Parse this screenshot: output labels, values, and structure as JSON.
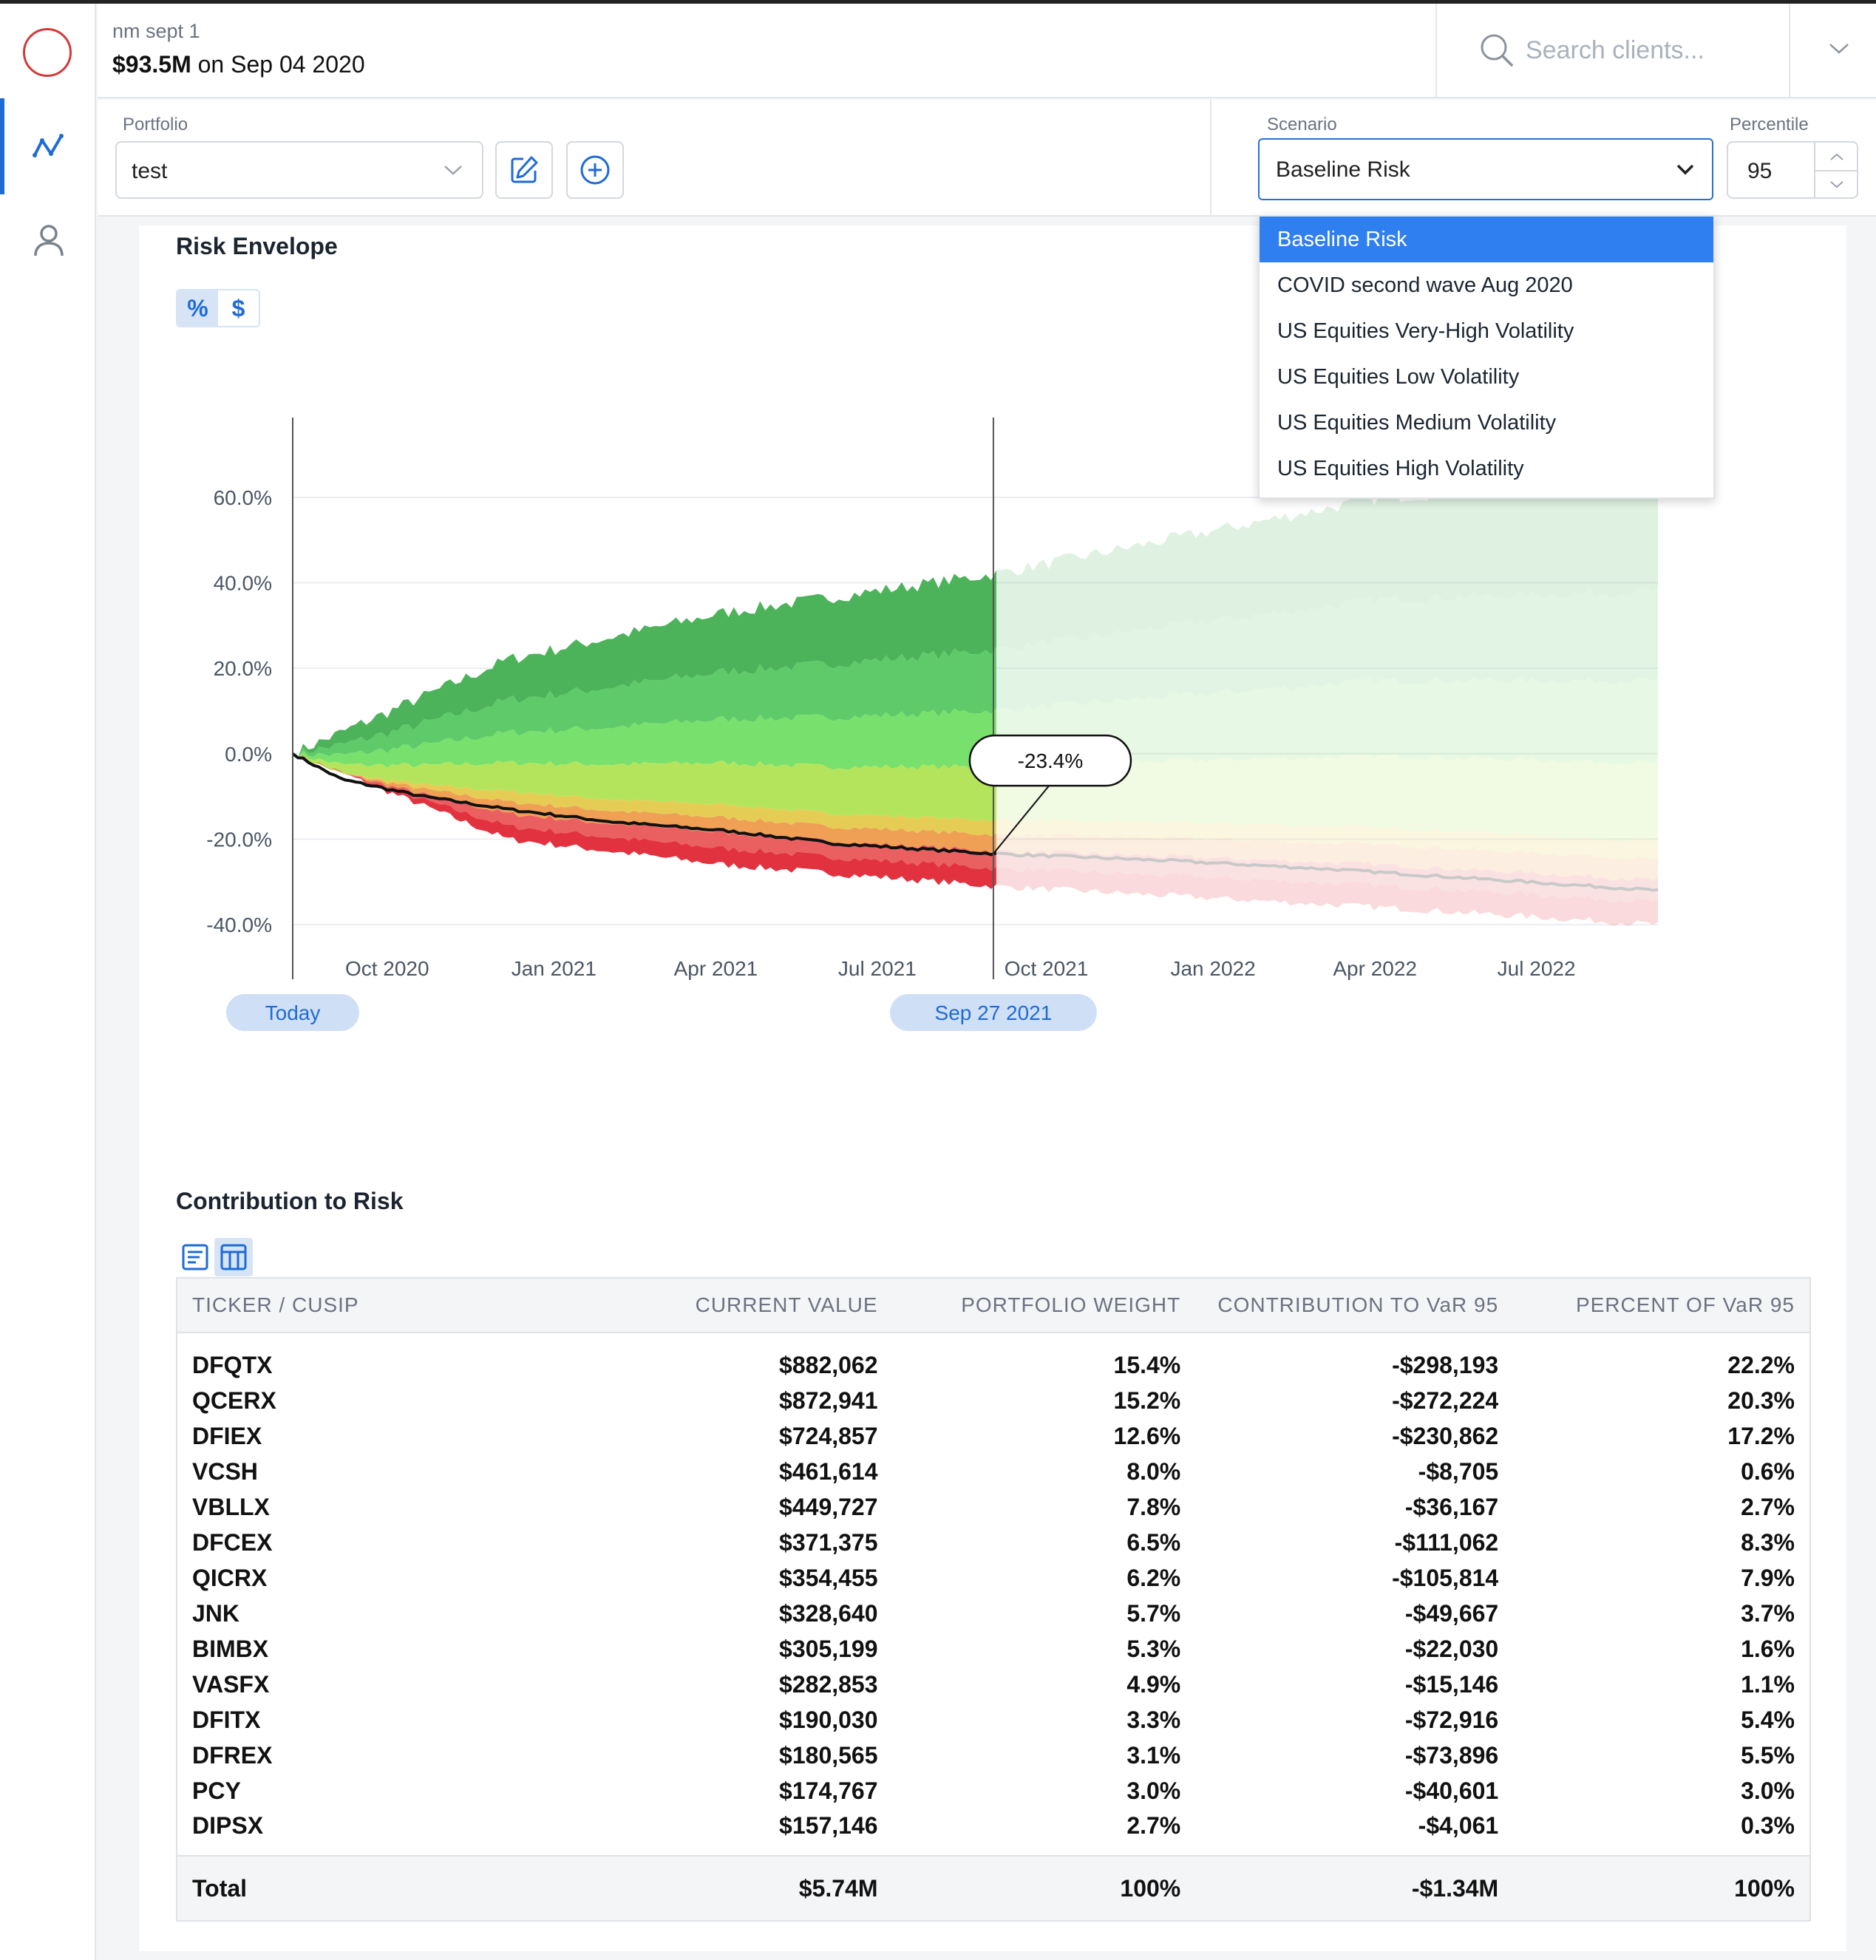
{
  "header": {
    "client_name": "nm sept 1",
    "aum": "$93.5M",
    "aum_suffix": " on Sep 04 2020",
    "search_placeholder": "Search clients..."
  },
  "toolbar": {
    "portfolio_label": "Portfolio",
    "portfolio_value": "test",
    "scenario_label": "Scenario",
    "scenario_value": "Baseline Risk",
    "percentile_label": "Percentile",
    "percentile_value": "95"
  },
  "scenario_menu": {
    "options": [
      "Baseline Risk",
      "COVID second wave Aug 2020",
      "US Equities Very-High Volatility",
      "US Equities Low Volatility",
      "US Equities Medium Volatility",
      "US Equities High Volatility"
    ],
    "selected_index": 0
  },
  "risk_envelope": {
    "title": "Risk Envelope",
    "toggle": {
      "percent": "%",
      "dollar": "$",
      "active": "percent"
    },
    "today_label": "Today",
    "marker_label": "Sep 27 2021",
    "callout": "-23.4%"
  },
  "chart_data": {
    "type": "area",
    "title": "",
    "xlabel": "",
    "ylabel": "",
    "x_ticks": [
      "Oct 2020",
      "Jan 2021",
      "Apr 2021",
      "Jul 2021",
      "Oct 2021",
      "Jan 2022",
      "Apr 2022",
      "Jul 2022"
    ],
    "y_ticks": [
      "60.0%",
      "40.0%",
      "20.0%",
      "0.0%",
      "-20.0%",
      "-40.0%"
    ],
    "y_range": [
      -45,
      70
    ],
    "x_range": [
      "2020-09-04",
      "2022-09-30"
    ],
    "marker_date": "2021-09-27",
    "marker_value": -23.4,
    "grid": true,
    "envelope_bands": [
      {
        "name": "upper-2",
        "color": "#4db35a"
      },
      {
        "name": "upper-1",
        "color": "#5fca6a"
      },
      {
        "name": "upper-0",
        "color": "#78e06c"
      },
      {
        "name": "mid-upper",
        "color": "#b4e45c"
      },
      {
        "name": "mid",
        "color": "#e5cd55"
      },
      {
        "name": "mid-lower",
        "color": "#efa055"
      },
      {
        "name": "lower-1",
        "color": "#ea6060"
      },
      {
        "name": "lower-2",
        "color": "#e2323f"
      }
    ],
    "path_points": [
      {
        "x": "2020-09-04",
        "y": 0
      },
      {
        "x": "2020-10-01",
        "y": -6
      },
      {
        "x": "2020-11-15",
        "y": -10
      },
      {
        "x": "2021-01-01",
        "y": -13
      },
      {
        "x": "2021-03-01",
        "y": -16
      },
      {
        "x": "2021-05-01",
        "y": -18
      },
      {
        "x": "2021-07-01",
        "y": -21
      },
      {
        "x": "2021-09-27",
        "y": -23.4
      },
      {
        "x": "2022-01-01",
        "y": -25
      },
      {
        "x": "2022-04-01",
        "y": -27
      },
      {
        "x": "2022-09-30",
        "y": -32
      }
    ],
    "upper_envelope": [
      {
        "x": "2020-09-04",
        "y": 0
      },
      {
        "x": "2021-01-01",
        "y": 22
      },
      {
        "x": "2021-05-01",
        "y": 33
      },
      {
        "x": "2021-09-27",
        "y": 42
      },
      {
        "x": "2022-01-01",
        "y": 50
      },
      {
        "x": "2022-05-01",
        "y": 60
      },
      {
        "x": "2022-09-30",
        "y": 64
      }
    ],
    "lower_envelope": [
      {
        "x": "2020-09-04",
        "y": 0
      },
      {
        "x": "2021-01-01",
        "y": -20
      },
      {
        "x": "2021-05-01",
        "y": -26
      },
      {
        "x": "2021-09-27",
        "y": -31
      },
      {
        "x": "2022-05-01",
        "y": -36
      },
      {
        "x": "2022-09-30",
        "y": -40
      }
    ]
  },
  "contribution": {
    "title": "Contribution to Risk",
    "columns": [
      "TICKER / CUSIP",
      "CURRENT VALUE",
      "PORTFOLIO WEIGHT",
      "CONTRIBUTION TO VaR 95",
      "PERCENT OF VaR 95"
    ],
    "rows": [
      [
        "DFQTX",
        "$882,062",
        "15.4%",
        "-$298,193",
        "22.2%"
      ],
      [
        "QCERX",
        "$872,941",
        "15.2%",
        "-$272,224",
        "20.3%"
      ],
      [
        "DFIEX",
        "$724,857",
        "12.6%",
        "-$230,862",
        "17.2%"
      ],
      [
        "VCSH",
        "$461,614",
        "8.0%",
        "-$8,705",
        "0.6%"
      ],
      [
        "VBLLX",
        "$449,727",
        "7.8%",
        "-$36,167",
        "2.7%"
      ],
      [
        "DFCEX",
        "$371,375",
        "6.5%",
        "-$111,062",
        "8.3%"
      ],
      [
        "QICRX",
        "$354,455",
        "6.2%",
        "-$105,814",
        "7.9%"
      ],
      [
        "JNK",
        "$328,640",
        "5.7%",
        "-$49,667",
        "3.7%"
      ],
      [
        "BIMBX",
        "$305,199",
        "5.3%",
        "-$22,030",
        "1.6%"
      ],
      [
        "VASFX",
        "$282,853",
        "4.9%",
        "-$15,146",
        "1.1%"
      ],
      [
        "DFITX",
        "$190,030",
        "3.3%",
        "-$72,916",
        "5.4%"
      ],
      [
        "DFREX",
        "$180,565",
        "3.1%",
        "-$73,896",
        "5.5%"
      ],
      [
        "PCY",
        "$174,767",
        "3.0%",
        "-$40,601",
        "3.0%"
      ],
      [
        "DIPSX",
        "$157,146",
        "2.7%",
        "-$4,061",
        "0.3%"
      ]
    ],
    "total": [
      "Total",
      "$5.74M",
      "100%",
      "-$1.34M",
      "100%"
    ]
  },
  "colors": {
    "accent": "#1e6bd6",
    "selected_option": "#2f7ff0",
    "pill_bg": "#cfe0f6",
    "logo": "#d23a3a"
  }
}
